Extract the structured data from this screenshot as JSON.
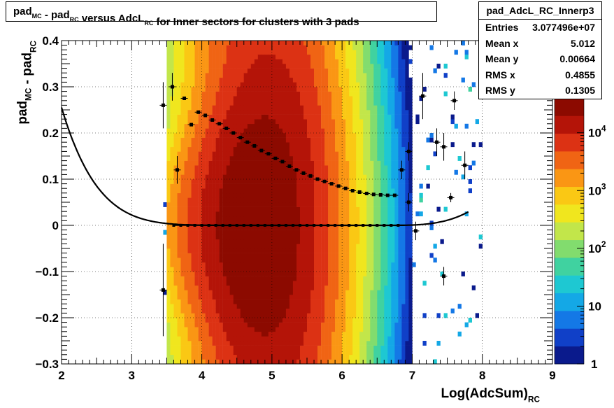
{
  "title": {
    "parts": [
      {
        "t": "pad",
        "s": "MC"
      },
      {
        "t": " - pad",
        "s": "RC"
      },
      {
        "t": " versus AdcL",
        "s": "RC"
      },
      {
        "t": " for Inner sectors for clusters with 3 pads",
        "s": ""
      }
    ]
  },
  "stats": {
    "name": "pad_AdcL_RC_Innerp3",
    "rows": [
      {
        "label": "Entries",
        "value": "3.077496e+07"
      },
      {
        "label": "Mean x",
        "value": "5.012"
      },
      {
        "label": "Mean y",
        "value": "0.00664"
      },
      {
        "label": "RMS x",
        "value": "0.4855"
      },
      {
        "label": "RMS y",
        "value": "0.1305"
      }
    ]
  },
  "colors": {
    "palette": [
      "#0a1a8c",
      "#1040c8",
      "#1478e6",
      "#14a8e6",
      "#1ec8d2",
      "#40d2a0",
      "#82dc6e",
      "#c2e64a",
      "#f0e61e",
      "#fac814",
      "#fa9614",
      "#f06414",
      "#dc3214",
      "#b41408",
      "#8c0a00"
    ],
    "markers": "#000000",
    "fit": "#000000"
  },
  "chart_data": {
    "type": "heatmap",
    "xlabel": {
      "t": "Log(AdcSum)",
      "s": "RC"
    },
    "ylabel": {
      "parts": [
        {
          "t": "pad",
          "s": "MC"
        },
        {
          "t": " - pad",
          "s": "RC"
        }
      ]
    },
    "xlim": [
      2,
      9
    ],
    "ylim": [
      -0.3,
      0.4
    ],
    "x_ticks": [
      "2",
      "3",
      "4",
      "5",
      "6",
      "7",
      "8",
      "9"
    ],
    "y_ticks": [
      "−0.3",
      "−0.2",
      "−0.1",
      "0",
      "0.1",
      "0.2",
      "0.3",
      "0.4"
    ],
    "colorbar": {
      "scale": "log",
      "range": [
        1,
        40000
      ],
      "ticks": [
        {
          "label": "1",
          "exp": ""
        },
        {
          "label": "10",
          "exp": ""
        },
        {
          "label": "10",
          "exp": "2"
        },
        {
          "label": "10",
          "exp": "3"
        },
        {
          "label": "10",
          "exp": "4"
        }
      ]
    },
    "density": {
      "x_center": 4.8,
      "sigma_x": 0.49,
      "peak": 40000,
      "gaussian_sigma_y": [
        0.09,
        0.23
      ],
      "x_range": [
        3.5,
        7.0
      ]
    },
    "rms_profile": {
      "x": [
        3.75,
        3.95,
        4.05,
        4.15,
        4.25,
        4.35,
        4.45,
        4.55,
        4.65,
        4.75,
        4.85,
        4.95,
        5.05,
        5.15,
        5.25,
        5.35,
        5.45,
        5.55,
        5.65,
        5.75,
        5.85,
        5.95,
        6.05,
        6.15,
        6.25,
        6.35,
        6.45,
        6.55,
        6.65,
        6.75
      ],
      "y": [
        0.275,
        0.245,
        0.238,
        0.228,
        0.22,
        0.21,
        0.2,
        0.19,
        0.18,
        0.172,
        0.162,
        0.155,
        0.145,
        0.138,
        0.128,
        0.12,
        0.113,
        0.107,
        0.1,
        0.095,
        0.09,
        0.085,
        0.08,
        0.075,
        0.072,
        0.069,
        0.067,
        0.066,
        0.065,
        0.065
      ]
    },
    "mean_profile": {
      "x_range": [
        3.6,
        6.8
      ],
      "y": 0.0
    },
    "outlier_points": [
      {
        "x": 3.45,
        "y": 0.26,
        "ey": 0.05
      },
      {
        "x": 3.58,
        "y": 0.3,
        "ey": 0.03
      },
      {
        "x": 3.65,
        "y": 0.12,
        "ey": 0.03
      },
      {
        "x": 3.45,
        "y": -0.14,
        "ey": 0.1
      },
      {
        "x": 3.85,
        "y": 0.218,
        "ey": 0.0
      },
      {
        "x": 6.85,
        "y": 0.12,
        "ey": 0.02
      },
      {
        "x": 6.95,
        "y": 0.16,
        "ey": 0.02
      },
      {
        "x": 6.95,
        "y": 0.05,
        "ey": 0.02
      },
      {
        "x": 7.05,
        "y": -0.012,
        "ey": 0.02
      },
      {
        "x": 7.15,
        "y": 0.28,
        "ey": 0.05
      },
      {
        "x": 7.35,
        "y": 0.18,
        "ey": 0.03
      },
      {
        "x": 7.45,
        "y": 0.17,
        "ey": 0.03
      },
      {
        "x": 7.45,
        "y": -0.11,
        "ey": 0.02
      },
      {
        "x": 7.55,
        "y": 0.06,
        "ey": 0.01
      },
      {
        "x": 7.6,
        "y": 0.27,
        "ey": 0.02
      },
      {
        "x": 7.75,
        "y": 0.13,
        "ey": 0.03
      }
    ],
    "fit_curve": {
      "description": "",
      "x_range": [
        2.0,
        7.8
      ]
    }
  }
}
